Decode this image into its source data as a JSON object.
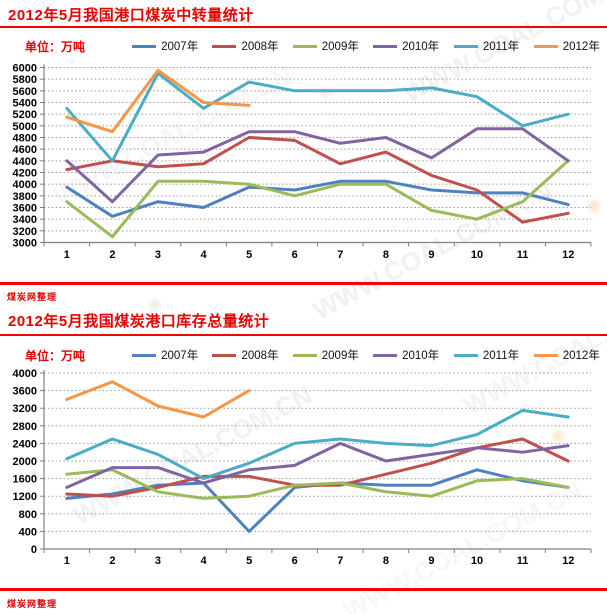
{
  "page": {
    "watermark_text": "WWW.COAL.COM.CN",
    "accent_red": "#fa0000"
  },
  "sections": [
    {
      "title": "2012年5月我国港口煤炭中转量统计",
      "unit_label": "单位：万吨",
      "footer_note": "煤炭网整理"
    },
    {
      "title": "2012年5月我国煤炭港口库存总量统计",
      "unit_label": "单位：万吨",
      "footer_note": "煤炭网整理"
    }
  ],
  "chart_data": [
    {
      "type": "line",
      "title": "2012年5月我国港口煤炭中转量统计",
      "unit": "万吨",
      "xlabel": "",
      "ylabel": "万吨",
      "x": [
        1,
        2,
        3,
        4,
        5,
        6,
        7,
        8,
        9,
        10,
        11,
        12
      ],
      "ylim": [
        3000,
        6000
      ],
      "ytick_step": 200,
      "grid": "horizontal-dotted",
      "legend_position": "top",
      "series": [
        {
          "name": "2007年",
          "color": "#4F81BD",
          "values": [
            3950,
            3450,
            3700,
            3600,
            3950,
            3900,
            4050,
            4050,
            3900,
            3850,
            3850,
            3650
          ]
        },
        {
          "name": "2008年",
          "color": "#C0504D",
          "values": [
            4250,
            4400,
            4300,
            4350,
            4800,
            4750,
            4350,
            4550,
            4150,
            3900,
            3350,
            3500
          ]
        },
        {
          "name": "2009年",
          "color": "#9BBB59",
          "values": [
            3700,
            3100,
            4050,
            4050,
            4000,
            3800,
            4000,
            4000,
            3550,
            3400,
            3700,
            4400
          ]
        },
        {
          "name": "2010年",
          "color": "#8064A2",
          "values": [
            4400,
            3700,
            4500,
            4550,
            4900,
            4900,
            4700,
            4800,
            4450,
            4950,
            4950,
            4400
          ]
        },
        {
          "name": "2011年",
          "color": "#4BACC6",
          "values": [
            5300,
            4400,
            5900,
            5300,
            5750,
            5600,
            5600,
            5600,
            5650,
            5500,
            5000,
            5200
          ]
        },
        {
          "name": "2012年",
          "color": "#F79646",
          "values": [
            5150,
            4900,
            5950,
            5400,
            5350
          ]
        }
      ]
    },
    {
      "type": "line",
      "title": "2012年5月我国煤炭港口库存总量统计",
      "unit": "万吨",
      "xlabel": "",
      "ylabel": "万吨",
      "x": [
        1,
        2,
        3,
        4,
        5,
        6,
        7,
        8,
        9,
        10,
        11,
        12
      ],
      "ylim": [
        0,
        4000
      ],
      "ytick_step": 400,
      "grid": "horizontal-dotted",
      "legend_position": "top",
      "series": [
        {
          "name": "2007年",
          "color": "#4F81BD",
          "values": [
            1150,
            1250,
            1450,
            1500,
            400,
            1400,
            1500,
            1450,
            1450,
            1800,
            1550,
            1400
          ]
        },
        {
          "name": "2008年",
          "color": "#C0504D",
          "values": [
            1250,
            1200,
            1400,
            1650,
            1650,
            1450,
            1450,
            1700,
            1950,
            2300,
            2500,
            2000
          ]
        },
        {
          "name": "2009年",
          "color": "#9BBB59",
          "values": [
            1700,
            1800,
            1300,
            1150,
            1200,
            1450,
            1500,
            1300,
            1200,
            1550,
            1600,
            1400
          ]
        },
        {
          "name": "2010年",
          "color": "#8064A2",
          "values": [
            1400,
            1850,
            1850,
            1500,
            1800,
            1900,
            2400,
            2000,
            2150,
            2300,
            2200,
            2350
          ]
        },
        {
          "name": "2011年",
          "color": "#4BACC6",
          "values": [
            2050,
            2500,
            2150,
            1600,
            1950,
            2400,
            2500,
            2400,
            2350,
            2600,
            3150,
            3000
          ]
        },
        {
          "name": "2012年",
          "color": "#F79646",
          "values": [
            3400,
            3800,
            3250,
            3000,
            3600
          ]
        }
      ]
    }
  ]
}
